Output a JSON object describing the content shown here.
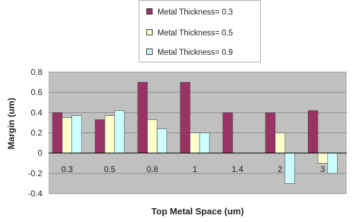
{
  "chart_data": {
    "type": "bar",
    "title": "",
    "xlabel": "Top Metal Space (um)",
    "ylabel": "Margin (um)",
    "categories": [
      "0.3",
      "0.5",
      "0.8",
      "1",
      "1.4",
      "2",
      "3"
    ],
    "series": [
      {
        "name": "Metal Thickness= 0.3",
        "color": "#993366",
        "values": [
          0.4,
          0.33,
          0.7,
          0.7,
          0.4,
          0.4,
          0.42
        ]
      },
      {
        "name": "Metal Thickness= 0.5",
        "color": "#ffffcc",
        "values": [
          0.35,
          0.37,
          0.33,
          0.2,
          0.0,
          0.2,
          -0.1
        ]
      },
      {
        "name": "Metal Thickness= 0.9",
        "color": "#ccffff",
        "values": [
          0.37,
          0.42,
          0.24,
          0.2,
          0.0,
          -0.3,
          -0.2
        ]
      }
    ],
    "ylim": [
      -0.4,
      0.8
    ],
    "yticks": [
      "0.8",
      "0.6",
      "0.4",
      "0.2",
      "0",
      "-0.2",
      "-0.4"
    ],
    "grid": true,
    "legend_position": "top",
    "plot_background": "#c0c0c0"
  }
}
